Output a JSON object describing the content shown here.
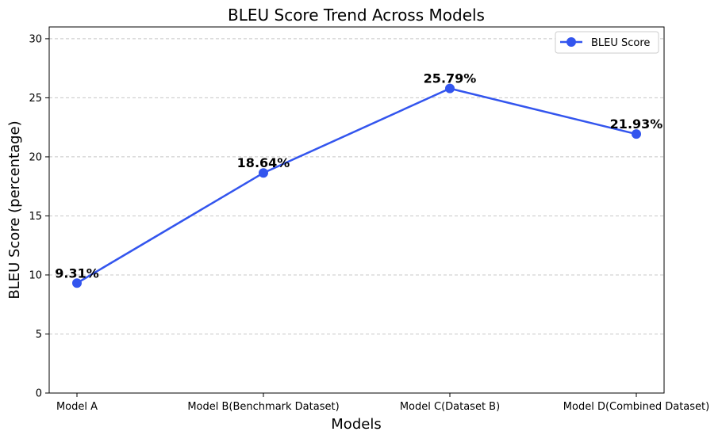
{
  "chart_data": {
    "type": "line",
    "title": "BLEU Score Trend Across Models",
    "xlabel": "Models",
    "ylabel": "BLEU Score (percentage)",
    "categories": [
      "Model A",
      "Model B(Benchmark Dataset)",
      "Model C(Dataset B)",
      "Model D(Combined Dataset)"
    ],
    "series": [
      {
        "name": "BLEU Score",
        "values": [
          9.31,
          18.64,
          25.79,
          21.93
        ],
        "color": "#3355ee"
      }
    ],
    "data_labels": [
      "9.31%",
      "18.64%",
      "25.79%",
      "21.93%"
    ],
    "ylim": [
      0,
      31
    ],
    "yticks": [
      0,
      5,
      10,
      15,
      20,
      25,
      30
    ],
    "ytick_labels": [
      "0",
      "5",
      "10",
      "15",
      "20",
      "25",
      "30"
    ],
    "grid": "horizontal dashed",
    "legend_position": "top-right"
  }
}
